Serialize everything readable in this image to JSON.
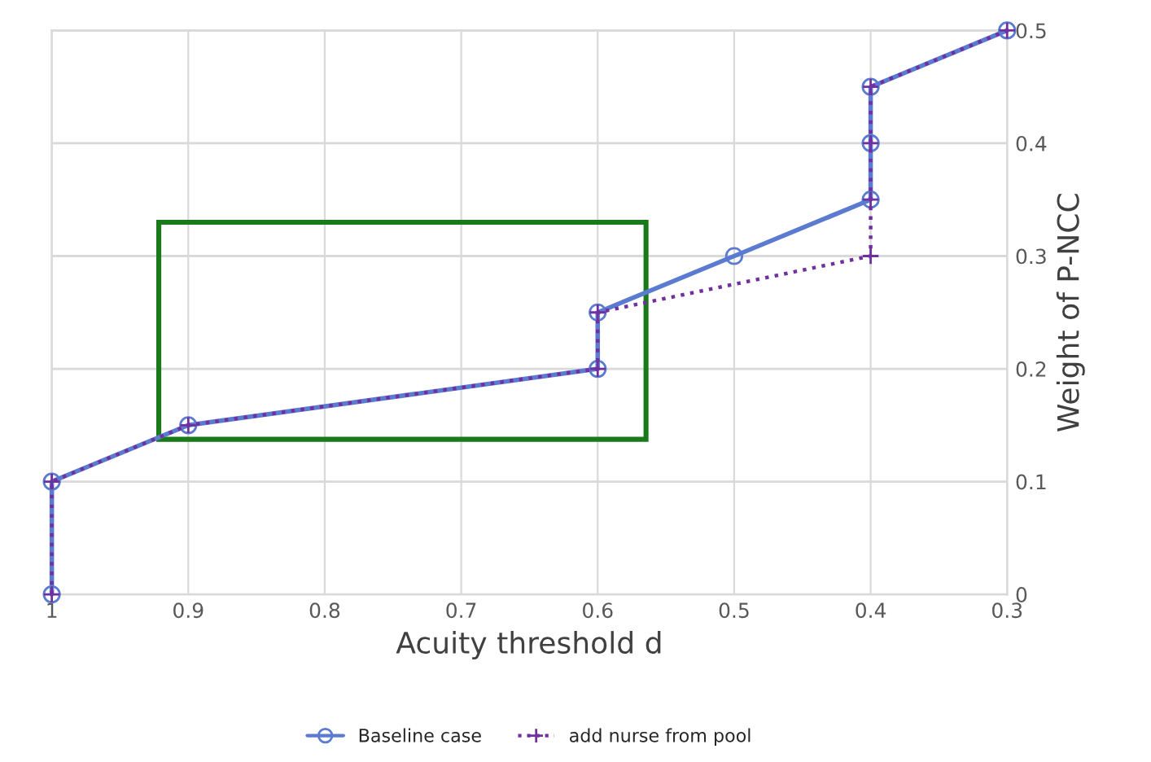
{
  "chart_data": {
    "type": "line",
    "xlabel": "Acuity threshold d",
    "y2label": "Weight of P-NCC",
    "xlim": [
      1,
      0.3
    ],
    "xticks": [
      1,
      0.9,
      0.8,
      0.7,
      0.6,
      0.5,
      0.4,
      0.3
    ],
    "y2lim": [
      0,
      0.5
    ],
    "y2ticks": [
      0,
      0.1,
      0.2,
      0.3,
      0.4,
      0.5
    ],
    "grid": true,
    "legend": "bottom",
    "series": [
      {
        "name": "Baseline case",
        "color": "#5a7bd0",
        "axis": "y2",
        "marker": "circle",
        "line_style": "solid",
        "x": [
          1,
          1,
          0.9,
          0.6,
          0.6,
          0.5,
          0.4,
          0.4,
          0.4,
          0.3
        ],
        "values": [
          0,
          0.1,
          0.15,
          0.2,
          0.25,
          0.3,
          0.35,
          0.4,
          0.45,
          0.5
        ]
      },
      {
        "name": "add nurse from pool",
        "color": "#7030a0",
        "axis": "y2",
        "marker": "cross",
        "line_style": "dotted",
        "x": [
          1,
          1,
          0.9,
          0.6,
          0.6,
          0.4,
          0.4,
          0.4,
          0.4,
          0.3
        ],
        "values": [
          0,
          0.1,
          0.15,
          0.2,
          0.25,
          0.3,
          0.35,
          0.4,
          0.45,
          0.5
        ]
      }
    ]
  }
}
